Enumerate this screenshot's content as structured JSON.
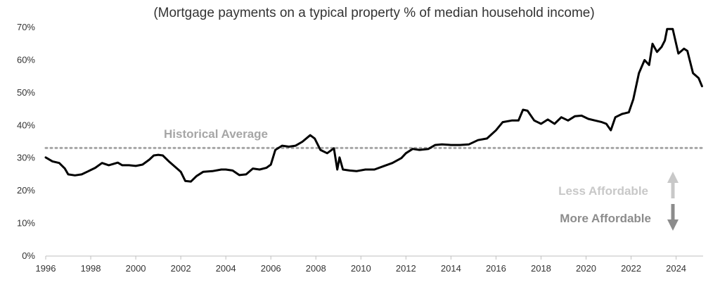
{
  "chart_data": {
    "type": "line",
    "subtitle": "(Mortgage payments on a typical property % of median household income)",
    "xlabel": "",
    "ylabel": "",
    "xlim": [
      1996,
      2025.2
    ],
    "ylim": [
      0,
      70
    ],
    "x_ticks": [
      1996,
      1998,
      2000,
      2002,
      2004,
      2006,
      2008,
      2010,
      2012,
      2014,
      2016,
      2018,
      2020,
      2022,
      2024
    ],
    "y_ticks": [
      0,
      10,
      20,
      30,
      40,
      50,
      60,
      70
    ],
    "y_tick_labels": [
      "0%",
      "10%",
      "20%",
      "30%",
      "40%",
      "50%",
      "60%",
      "70%"
    ],
    "grid": false,
    "series": [
      {
        "color": "#000000",
        "points": [
          [
            1996.0,
            30.2
          ],
          [
            1996.3,
            29.0
          ],
          [
            1996.6,
            28.5
          ],
          [
            1996.85,
            26.8
          ],
          [
            1997.0,
            25.0
          ],
          [
            1997.3,
            24.7
          ],
          [
            1997.6,
            25.0
          ],
          [
            1997.9,
            26.0
          ],
          [
            1998.2,
            27.0
          ],
          [
            1998.5,
            28.5
          ],
          [
            1998.8,
            27.8
          ],
          [
            1999.0,
            28.2
          ],
          [
            1999.2,
            28.6
          ],
          [
            1999.4,
            27.8
          ],
          [
            1999.7,
            27.8
          ],
          [
            2000.0,
            27.6
          ],
          [
            2000.3,
            28.0
          ],
          [
            2000.6,
            29.5
          ],
          [
            2000.8,
            30.8
          ],
          [
            2001.0,
            31.0
          ],
          [
            2001.2,
            30.8
          ],
          [
            2001.5,
            28.8
          ],
          [
            2001.8,
            27.0
          ],
          [
            2002.0,
            25.8
          ],
          [
            2002.2,
            23.0
          ],
          [
            2002.45,
            22.8
          ],
          [
            2002.7,
            24.5
          ],
          [
            2003.0,
            25.8
          ],
          [
            2003.4,
            26.0
          ],
          [
            2003.8,
            26.5
          ],
          [
            2004.0,
            26.5
          ],
          [
            2004.3,
            26.2
          ],
          [
            2004.6,
            24.8
          ],
          [
            2004.9,
            25.0
          ],
          [
            2005.2,
            26.8
          ],
          [
            2005.5,
            26.5
          ],
          [
            2005.8,
            27.0
          ],
          [
            2006.0,
            28.0
          ],
          [
            2006.2,
            32.5
          ],
          [
            2006.5,
            33.8
          ],
          [
            2006.8,
            33.5
          ],
          [
            2007.1,
            33.8
          ],
          [
            2007.4,
            35.0
          ],
          [
            2007.75,
            37.0
          ],
          [
            2007.95,
            36.0
          ],
          [
            2008.2,
            32.5
          ],
          [
            2008.5,
            31.5
          ],
          [
            2008.8,
            33.0
          ],
          [
            2008.95,
            26.5
          ],
          [
            2009.05,
            30.2
          ],
          [
            2009.2,
            26.5
          ],
          [
            2009.5,
            26.2
          ],
          [
            2009.8,
            26.0
          ],
          [
            2010.2,
            26.5
          ],
          [
            2010.6,
            26.5
          ],
          [
            2011.0,
            27.5
          ],
          [
            2011.4,
            28.5
          ],
          [
            2011.8,
            30.0
          ],
          [
            2012.0,
            31.5
          ],
          [
            2012.3,
            32.8
          ],
          [
            2012.6,
            32.5
          ],
          [
            2013.0,
            32.8
          ],
          [
            2013.3,
            34.0
          ],
          [
            2013.6,
            34.2
          ],
          [
            2014.0,
            34.0
          ],
          [
            2014.4,
            34.0
          ],
          [
            2014.8,
            34.2
          ],
          [
            2015.2,
            35.5
          ],
          [
            2015.6,
            36.0
          ],
          [
            2016.0,
            38.5
          ],
          [
            2016.3,
            41.0
          ],
          [
            2016.7,
            41.5
          ],
          [
            2017.0,
            41.5
          ],
          [
            2017.2,
            44.8
          ],
          [
            2017.4,
            44.5
          ],
          [
            2017.7,
            41.5
          ],
          [
            2018.0,
            40.5
          ],
          [
            2018.3,
            41.8
          ],
          [
            2018.6,
            40.5
          ],
          [
            2018.9,
            42.5
          ],
          [
            2019.2,
            41.5
          ],
          [
            2019.5,
            42.8
          ],
          [
            2019.8,
            43.0
          ],
          [
            2020.1,
            42.0
          ],
          [
            2020.4,
            41.5
          ],
          [
            2020.7,
            41.0
          ],
          [
            2020.9,
            40.5
          ],
          [
            2021.1,
            38.5
          ],
          [
            2021.3,
            42.5
          ],
          [
            2021.6,
            43.5
          ],
          [
            2021.9,
            44.0
          ],
          [
            2022.1,
            48.0
          ],
          [
            2022.35,
            56.0
          ],
          [
            2022.6,
            60.0
          ],
          [
            2022.8,
            58.5
          ],
          [
            2022.95,
            65.0
          ],
          [
            2023.15,
            62.5
          ],
          [
            2023.35,
            64.0
          ],
          [
            2023.5,
            66.0
          ],
          [
            2023.6,
            69.5
          ],
          [
            2023.85,
            69.5
          ],
          [
            2024.1,
            62.0
          ],
          [
            2024.35,
            63.5
          ],
          [
            2024.5,
            62.8
          ],
          [
            2024.75,
            56.0
          ],
          [
            2025.0,
            54.5
          ],
          [
            2025.15,
            52.0
          ]
        ]
      },
      {
        "color": "#a6a6a6",
        "line_style": "dotted",
        "points": [
          [
            1996.0,
            33.1
          ],
          [
            2025.2,
            33.1
          ]
        ]
      }
    ],
    "annotations": {
      "historical_average": "Historical Average",
      "less_affordable": "Less Affordable",
      "more_affordable": "More Affordable"
    },
    "colors": {
      "line": "#000000",
      "average": "#a6a6a6",
      "less_affordable": "#c8c8c8",
      "more_affordable": "#8c8c8c"
    }
  }
}
